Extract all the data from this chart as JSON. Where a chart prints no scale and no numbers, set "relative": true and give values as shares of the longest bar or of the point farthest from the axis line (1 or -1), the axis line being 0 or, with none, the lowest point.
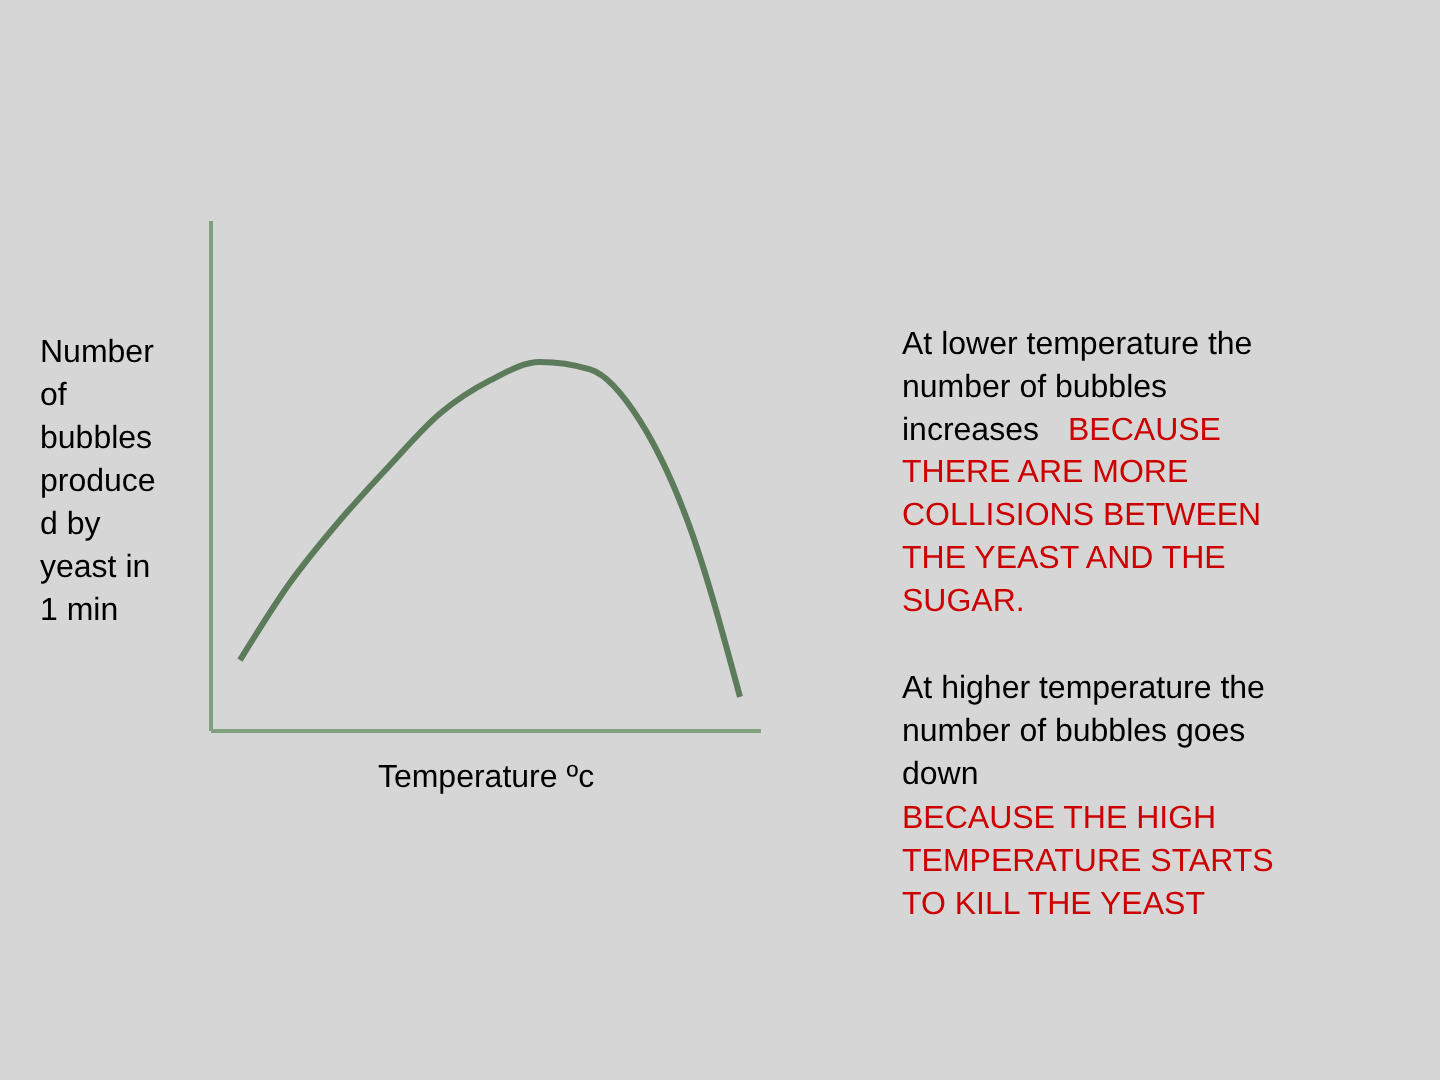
{
  "chart_data": {
    "type": "line",
    "relative": true,
    "ylabel": "Number\nof\nbubbles\nproduce\nd by\nyeast in\n1 min",
    "xlabel": "Temperature ºc",
    "categories": [
      null,
      null,
      null,
      null,
      null,
      null,
      null,
      null,
      null,
      null,
      null
    ],
    "series": [
      {
        "color": "#5b7b5b",
        "values": [
          0.19,
          0.4,
          0.57,
          0.72,
          0.86,
          0.95,
          1.0,
          0.98,
          0.84,
          0.55,
          0.09
        ]
      }
    ],
    "annotations": [
      "At lower temperature the\nnumber of bubbles\nincreases",
      "BECAUSE",
      "THERE ARE MORE\nCOLLISIONS BETWEEN\nTHE YEAST AND THE\nSUGAR.",
      "At higher temperature the\nnumber of bubbles goes\ndown",
      "BECAUSE THE HIGH\nTEMPERATURE STARTS\nTO KILL THE YEAST"
    ],
    "grid": false,
    "marker": "none",
    "line_style": "solid"
  }
}
